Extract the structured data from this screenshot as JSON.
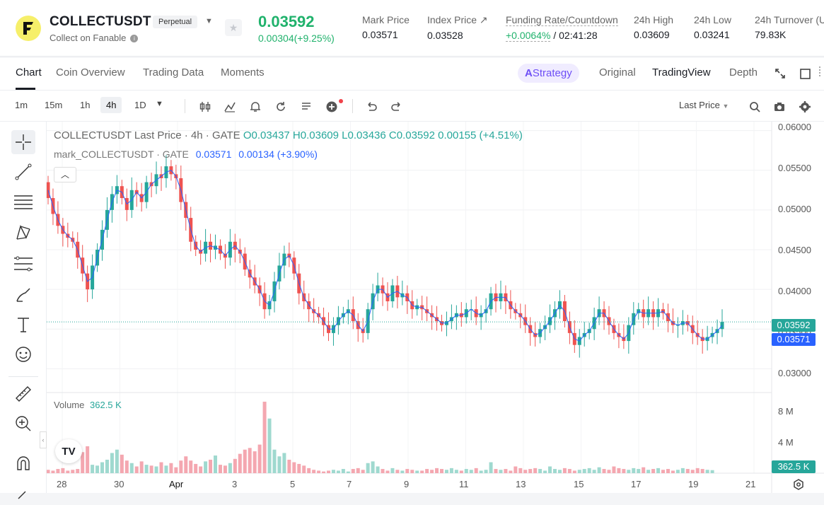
{
  "header": {
    "symbol": "COLLECTUSDT",
    "contract_type": "Perpetual",
    "subtitle": "Collect on Fanable",
    "last_price": "0.03592",
    "change": "0.00304(+9.25%)",
    "stats": [
      {
        "label": "Mark Price",
        "value": "0.03571"
      },
      {
        "label": "Index Price ↗",
        "value": "0.03528"
      },
      {
        "label": "Funding Rate/Countdown",
        "value_rate": "+0.0064%",
        "value_countdown": "/ 02:41:28"
      },
      {
        "label": "24h High",
        "value": "0.03609"
      },
      {
        "label": "24h Low",
        "value": "0.03241"
      },
      {
        "label": "24h Turnover (U",
        "value": "79.83K"
      }
    ]
  },
  "tabs": {
    "left": [
      "Chart",
      "Coin Overview",
      "Trading Data",
      "Moments"
    ],
    "strategy": "Strategy",
    "right": [
      "Original",
      "TradingView",
      "Depth"
    ]
  },
  "toolbar": {
    "timeframes": [
      "1m",
      "15m",
      "1h",
      "4h",
      "1D"
    ],
    "selected": "4h",
    "price_type": "Last Price"
  },
  "chart": {
    "legend_main": {
      "title": "COLLECTUSDT Last Price · 4h · GATE",
      "o": "O0.03437",
      "h": "H0.03609",
      "l": "L0.03436",
      "c": "C0.03592",
      "chg": "0.00155 (+4.51%)"
    },
    "legend_mark": {
      "name": "mark_COLLECTUSDT · GATE",
      "value": "0.03571",
      "chg": "0.00134 (+3.90%)"
    },
    "volume_label": "Volume",
    "volume_value": "362.5 K",
    "last_price_tag": "0.03592",
    "mark_price_tag": "0.03571",
    "volume_tag": "362.5 K",
    "y_ticks": [
      "0.06000",
      "0.05500",
      "0.05000",
      "0.04500",
      "0.04000",
      "0.03500",
      "0.03000"
    ],
    "vol_ticks": [
      "8 M",
      "4 M"
    ],
    "x_ticks": [
      "28",
      "30",
      "Apr",
      "3",
      "5",
      "7",
      "9",
      "11",
      "13",
      "15",
      "17",
      "19",
      "21"
    ]
  },
  "chart_data": {
    "type": "candlestick",
    "ylim": [
      0.0295,
      0.0605
    ],
    "closes": [
      0.0515,
      0.0495,
      0.048,
      0.047,
      0.0465,
      0.046,
      0.044,
      0.042,
      0.04,
      0.043,
      0.045,
      0.0475,
      0.05,
      0.052,
      0.053,
      0.0515,
      0.05,
      0.0525,
      0.052,
      0.051,
      0.0535,
      0.053,
      0.0545,
      0.054,
      0.0555,
      0.0545,
      0.054,
      0.051,
      0.049,
      0.046,
      0.045,
      0.0445,
      0.046,
      0.045,
      0.0455,
      0.0445,
      0.044,
      0.046,
      0.045,
      0.0445,
      0.0425,
      0.0415,
      0.0405,
      0.0395,
      0.0375,
      0.0385,
      0.041,
      0.043,
      0.0445,
      0.044,
      0.042,
      0.0395,
      0.0385,
      0.0375,
      0.037,
      0.0365,
      0.0355,
      0.0345,
      0.0355,
      0.0365,
      0.037,
      0.0375,
      0.036,
      0.035,
      0.0345,
      0.0375,
      0.0395,
      0.0405,
      0.0395,
      0.0385,
      0.0405,
      0.039,
      0.0395,
      0.0385,
      0.0375,
      0.038,
      0.0375,
      0.037,
      0.0365,
      0.036,
      0.0355,
      0.036,
      0.0365,
      0.037,
      0.0365,
      0.0375,
      0.0375,
      0.0365,
      0.037,
      0.0375,
      0.0395,
      0.0385,
      0.0395,
      0.0385,
      0.0375,
      0.037,
      0.0365,
      0.0355,
      0.0345,
      0.034,
      0.035,
      0.0355,
      0.0365,
      0.0375,
      0.0385,
      0.036,
      0.0345,
      0.033,
      0.034,
      0.0345,
      0.035,
      0.0365,
      0.0375,
      0.0365,
      0.0355,
      0.0345,
      0.034,
      0.0335,
      0.0355,
      0.037,
      0.0375,
      0.0365,
      0.0375,
      0.0365,
      0.0375,
      0.037,
      0.036,
      0.0355,
      0.0355,
      0.036,
      0.0355,
      0.0345,
      0.034,
      0.0335,
      0.034,
      0.0345,
      0.035,
      0.0359
    ],
    "volumes": [
      0.4,
      0.3,
      0.5,
      0.6,
      0.3,
      0.4,
      0.5,
      2.5,
      3.2,
      1.0,
      0.9,
      1.3,
      1.6,
      2.4,
      2.8,
      2.2,
      1.5,
      1.2,
      0.8,
      1.4,
      1.0,
      0.9,
      0.8,
      1.3,
      0.9,
      1.2,
      0.7,
      1.5,
      2.0,
      1.5,
      1.1,
      0.8,
      1.4,
      1.6,
      2.1,
      1.0,
      0.9,
      1.2,
      1.7,
      2.3,
      2.8,
      3.0,
      2.6,
      3.4,
      8.5,
      6.5,
      2.8,
      2.0,
      2.4,
      1.6,
      1.3,
      1.1,
      0.9,
      0.6,
      0.4,
      0.3,
      0.2,
      0.3,
      0.4,
      0.3,
      0.5,
      0.2,
      0.5,
      0.6,
      0.4,
      1.2,
      1.4,
      0.8,
      0.5,
      0.3,
      0.6,
      0.4,
      0.3,
      0.5,
      0.4,
      0.3,
      0.3,
      0.5,
      0.4,
      0.6,
      0.5,
      0.4,
      0.6,
      0.4,
      0.3,
      0.5,
      0.4,
      0.6,
      0.3,
      0.4,
      1.3,
      0.5,
      0.4,
      0.5,
      0.3,
      0.8,
      0.6,
      0.4,
      0.5,
      0.6,
      0.5,
      0.3,
      0.8,
      0.5,
      0.4,
      0.6,
      0.5,
      0.3,
      0.4,
      0.5,
      0.6,
      0.4,
      0.7,
      0.5,
      0.4,
      0.8,
      0.6,
      0.5,
      0.4,
      0.6,
      0.5,
      0.7,
      0.4,
      0.5,
      0.6,
      0.4,
      0.5,
      0.3,
      0.4,
      0.6,
      0.5,
      0.4,
      0.6,
      0.5,
      0.4,
      0.36
    ],
    "colors": {
      "up": "#26a69a",
      "down": "#ef5350",
      "mark_line": "#2962ff"
    }
  }
}
